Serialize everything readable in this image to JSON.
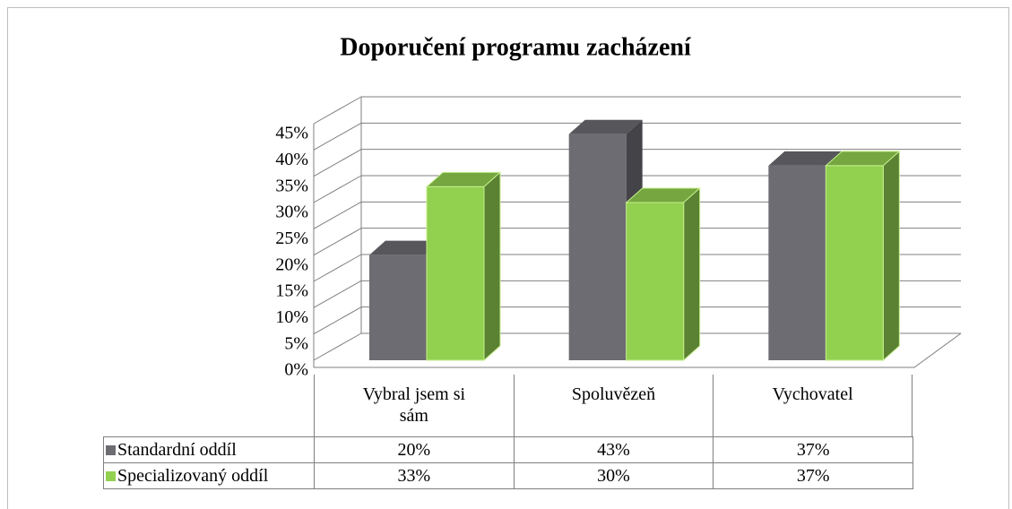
{
  "chart_data": {
    "type": "bar3d",
    "title": "Doporučení programu zacházení",
    "categories": [
      "Vybral jsem si sám",
      "Spoluvězeň",
      "Vychovatel"
    ],
    "series": [
      {
        "name": "Standardní oddíl",
        "color": "#6d6c72",
        "values": [
          20,
          43,
          37
        ],
        "value_labels": [
          "20%",
          "43%",
          "37%"
        ]
      },
      {
        "name": "Specializovaný oddíl",
        "color": "#92d050",
        "values": [
          33,
          30,
          37
        ],
        "value_labels": [
          "33%",
          "30%",
          "37%"
        ]
      }
    ],
    "ylim": [
      0,
      45
    ],
    "yticks": [
      {
        "value": 0,
        "label": "0%"
      },
      {
        "value": 5,
        "label": "5%"
      },
      {
        "value": 10,
        "label": "10%"
      },
      {
        "value": 15,
        "label": "15%"
      },
      {
        "value": 20,
        "label": "20%"
      },
      {
        "value": 25,
        "label": "25%"
      },
      {
        "value": 30,
        "label": "30%"
      },
      {
        "value": 35,
        "label": "35%"
      },
      {
        "value": 40,
        "label": "40%"
      },
      {
        "value": 45,
        "label": "45%"
      }
    ],
    "grid": true,
    "data_table": true
  }
}
